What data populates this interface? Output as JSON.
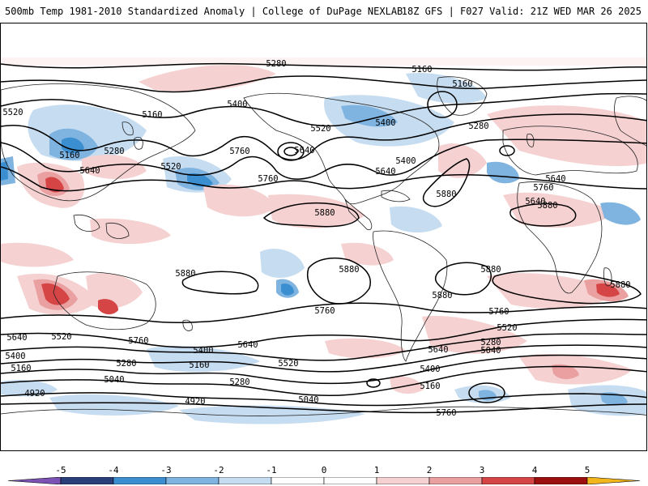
{
  "header": {
    "title_left": "500mb Temp 1981-2010 Standardized Anomaly | College of DuPage NEXLAB",
    "title_right": "18Z GFS | F027 Valid: 21Z WED MAR 26 2025"
  },
  "colorbar": {
    "ticks": [
      "-5",
      "-4",
      "-3",
      "-2",
      "-1",
      "0",
      "1",
      "2",
      "3",
      "4",
      "5"
    ],
    "colors": {
      "neg5": "#7c52b5",
      "neg4": "#2a3f7a",
      "neg3": "#3b8fd1",
      "neg2": "#7fb3e0",
      "neg1": "#c6dcf0",
      "zero_neg": "#ffffff",
      "zero_pos": "#ffffff",
      "pos1": "#f5d1d1",
      "pos2": "#eaa0a0",
      "pos3": "#d64545",
      "pos4": "#9c0f0f",
      "pos5": "#f2b51b"
    }
  },
  "contour_labels": [
    "5280",
    "5160",
    "5160",
    "5520",
    "5400",
    "5160",
    "5400",
    "5280",
    "5640",
    "5520",
    "5640",
    "5760",
    "5520",
    "5160",
    "5280",
    "5640",
    "5400",
    "5640",
    "5760",
    "5880",
    "5880",
    "5640",
    "5760",
    "5880",
    "5880",
    "5880",
    "5880",
    "5880",
    "5880",
    "5760",
    "5760",
    "5640",
    "5520",
    "5760",
    "5640",
    "5400",
    "5520",
    "5400",
    "5280",
    "5160",
    "5280",
    "5160",
    "5040",
    "4920",
    "5640",
    "5400",
    "5280",
    "5040",
    "5160",
    "5040",
    "4920",
    "5520",
    "5760"
  ]
}
